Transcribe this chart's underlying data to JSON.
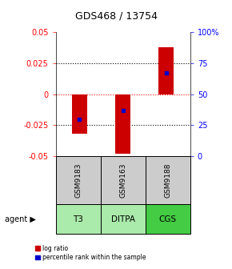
{
  "title": "GDS468 / 13754",
  "categories": [
    "GSM9183",
    "GSM9163",
    "GSM9188"
  ],
  "agents": [
    "T3",
    "DITPA",
    "CGS"
  ],
  "bar_values": [
    -0.032,
    -0.048,
    0.038
  ],
  "blue_sq_values": [
    -0.02,
    -0.013,
    0.017
  ],
  "ylim": [
    -0.05,
    0.05
  ],
  "yticks_left": [
    -0.05,
    -0.025,
    0,
    0.025,
    0.05
  ],
  "yticks_right": [
    0,
    25,
    50,
    75,
    100
  ],
  "bar_color": "#cc0000",
  "blue_color": "#0000cc",
  "bar_width": 0.35,
  "gsm_bg": "#cccccc",
  "agent_colors": [
    "#aaeaaa",
    "#aaeaaa",
    "#44cc44"
  ],
  "hline_colors": {
    "0": "red",
    "other": "black"
  },
  "legend_items": [
    {
      "label": "log ratio",
      "color": "#cc0000"
    },
    {
      "label": "percentile rank within the sample",
      "color": "#0000cc"
    }
  ]
}
